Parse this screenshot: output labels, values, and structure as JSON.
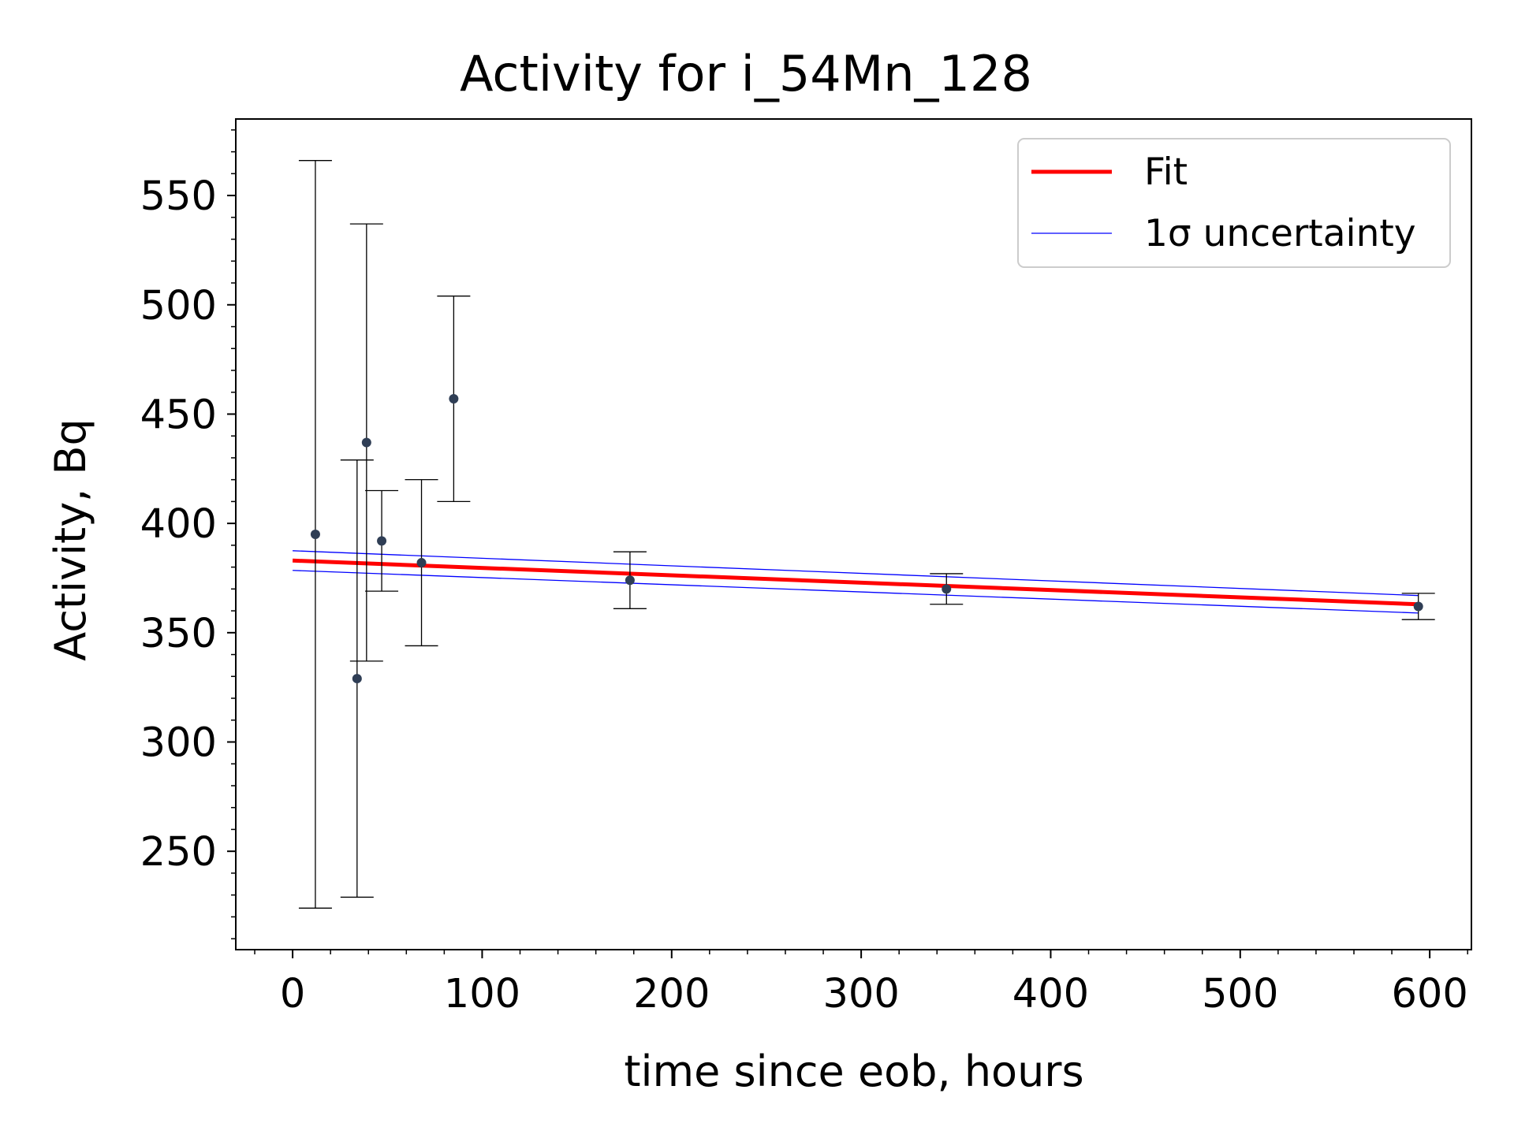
{
  "chart_data": {
    "type": "scatter",
    "title": "Activity for i_54Mn_128",
    "xlabel": "time since eob, hours",
    "ylabel": "Activity, Bq",
    "xlim": [
      -30,
      622
    ],
    "ylim": [
      205,
      585
    ],
    "xticks": [
      0,
      100,
      200,
      300,
      400,
      500,
      600
    ],
    "xtick_labels": [
      "0",
      "100",
      "200",
      "300",
      "400",
      "500",
      "600"
    ],
    "yticks": [
      250,
      300,
      350,
      400,
      450,
      500,
      550
    ],
    "ytick_labels": [
      "250",
      "300",
      "350",
      "400",
      "450",
      "500",
      "550"
    ],
    "x_minor_step": 20,
    "y_minor_step": 10,
    "grid": false,
    "legend_position": "top-right",
    "legend": [
      {
        "label": "Fit",
        "color": "#ff0000",
        "style": "thick-line"
      },
      {
        "label": "1σ uncertainty",
        "color": "#0000ff",
        "style": "thin-line"
      }
    ],
    "series": [
      {
        "name": "Fit",
        "kind": "line",
        "color": "#ff0000",
        "x": [
          0,
          594
        ],
        "y": [
          383,
          363
        ]
      },
      {
        "name": "1σ uncertainty",
        "kind": "band",
        "color": "#0000ff",
        "x": [
          0,
          594
        ],
        "upper": [
          387.5,
          367
        ],
        "lower": [
          378.5,
          359
        ]
      },
      {
        "kind": "errorbar",
        "color": "#2f3e55",
        "x": [
          12,
          34,
          39,
          47,
          68,
          85,
          178,
          345,
          594
        ],
        "y": [
          395,
          329,
          437,
          392,
          382,
          457,
          374,
          370,
          362
        ],
        "yerr": [
          171,
          100,
          100,
          23,
          38,
          47,
          13,
          7,
          6
        ]
      }
    ]
  }
}
